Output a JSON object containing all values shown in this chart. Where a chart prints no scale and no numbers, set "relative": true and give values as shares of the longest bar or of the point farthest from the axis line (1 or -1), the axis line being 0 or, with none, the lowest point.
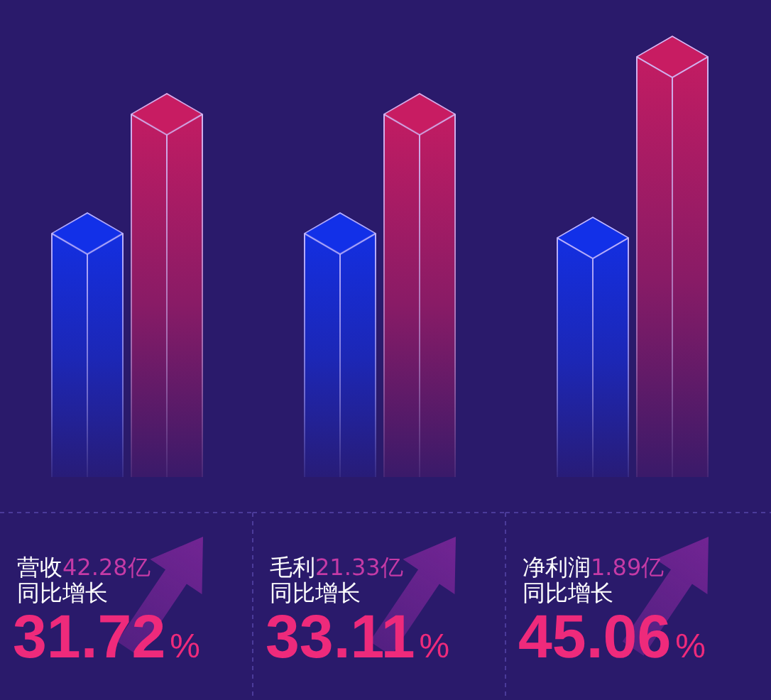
{
  "chart_data": {
    "type": "bar",
    "relative": true,
    "categories": [
      "营收",
      "毛利",
      "净利润"
    ],
    "series": [
      {
        "color": "#1230e8",
        "values": [
          0.6,
          0.6,
          0.59
        ]
      },
      {
        "color": "#c81c62",
        "values": [
          0.87,
          0.87,
          1
        ]
      }
    ],
    "annotations": [
      "42.28亿",
      "同比增长",
      "31.72%",
      "21.33亿",
      "同比增长",
      "33.11%",
      "1.89亿",
      "同比增长",
      "45.06%"
    ]
  }
}
